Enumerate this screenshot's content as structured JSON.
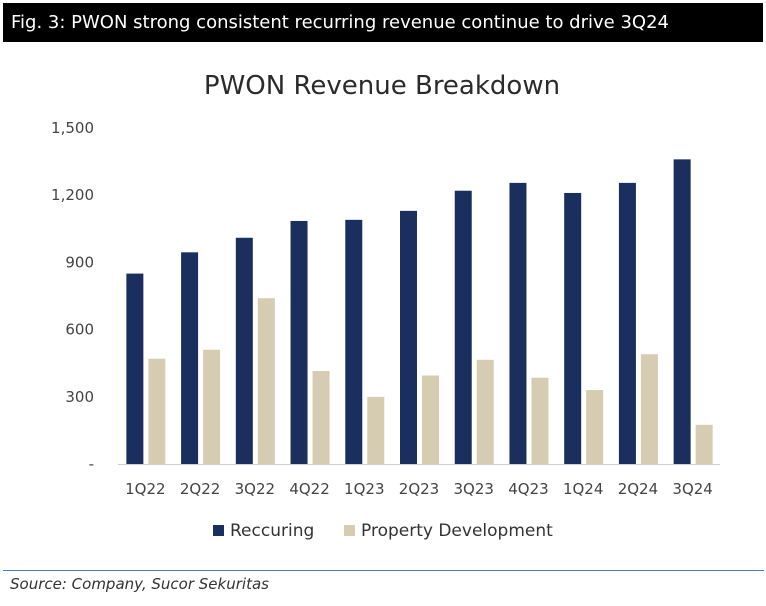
{
  "figure": {
    "caption": "Fig. 3: PWON strong consistent recurring revenue continue to drive 3Q24",
    "source": "Source: Company, Sucor Sekuritas"
  },
  "chart_data": {
    "type": "bar",
    "title": "PWON Revenue Breakdown",
    "xlabel": "",
    "ylabel": "",
    "categories": [
      "1Q22",
      "2Q22",
      "3Q22",
      "4Q22",
      "1Q23",
      "2Q23",
      "3Q23",
      "4Q23",
      "1Q24",
      "2Q24",
      "3Q24"
    ],
    "series": [
      {
        "name": "Reccuring",
        "color": "#1b2f5e",
        "values": [
          850,
          945,
          1010,
          1085,
          1090,
          1130,
          1220,
          1255,
          1210,
          1255,
          1360
        ]
      },
      {
        "name": "Property Development",
        "color": "#d6ccb2",
        "values": [
          470,
          510,
          740,
          415,
          300,
          395,
          465,
          385,
          330,
          490,
          175
        ]
      }
    ],
    "ylim": [
      0,
      1500
    ],
    "yticks": [
      0,
      300,
      600,
      900,
      1200,
      1500
    ],
    "ytick_labels": [
      "-",
      "300",
      "600",
      "900",
      "1,200",
      "1,500"
    ],
    "grid": false,
    "legend_position": "bottom"
  }
}
